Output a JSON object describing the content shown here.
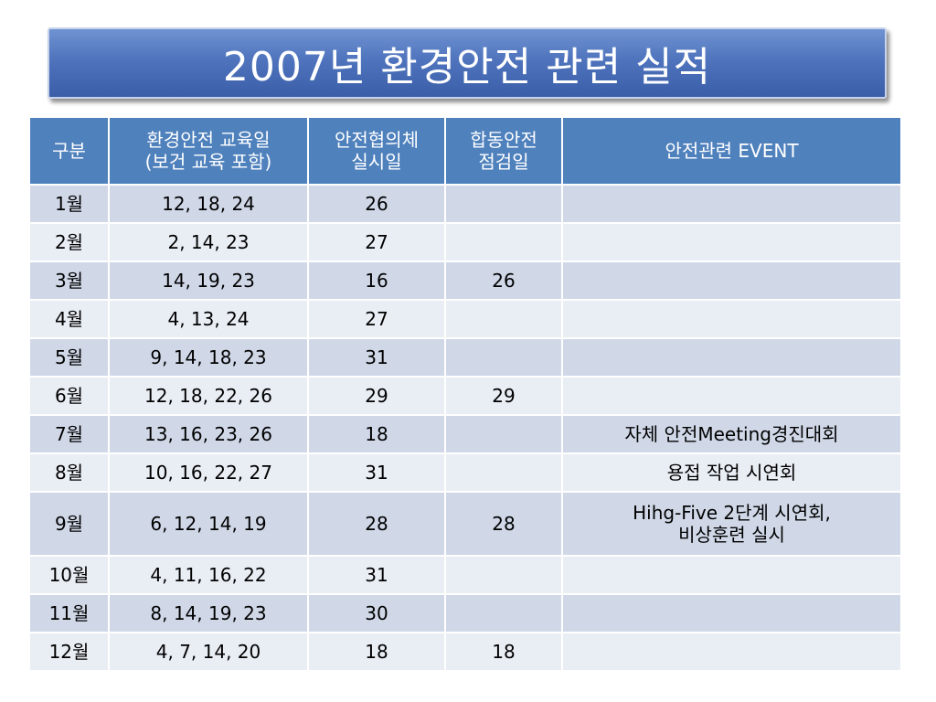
{
  "title": "2007년 환경안전 관련 실적",
  "colors": {
    "title_bg": "#4f74bd",
    "header_bg": "#4f81bd",
    "row_odd_bg": "#d0d8e8",
    "row_even_bg": "#e9edf4"
  },
  "table": {
    "headers": [
      "구분",
      "환경안전 교육일\n(보건 교육 포함)",
      "안전협의체\n실시일",
      "합동안전\n점검일",
      "안전관련 EVENT"
    ],
    "rows": [
      {
        "month": "1월",
        "education": "12, 18, 24",
        "council": "26",
        "inspection": "",
        "event": ""
      },
      {
        "month": "2월",
        "education": "2, 14, 23",
        "council": "27",
        "inspection": "",
        "event": ""
      },
      {
        "month": "3월",
        "education": "14, 19, 23",
        "council": "16",
        "inspection": "26",
        "event": ""
      },
      {
        "month": "4월",
        "education": "4, 13, 24",
        "council": "27",
        "inspection": "",
        "event": ""
      },
      {
        "month": "5월",
        "education": "9, 14, 18, 23",
        "council": "31",
        "inspection": "",
        "event": ""
      },
      {
        "month": "6월",
        "education": "12, 18, 22, 26",
        "council": "29",
        "inspection": "29",
        "event": ""
      },
      {
        "month": "7월",
        "education": "13, 16, 23, 26",
        "council": "18",
        "inspection": "",
        "event": "자체 안전Meeting경진대회"
      },
      {
        "month": "8월",
        "education": "10, 16, 22, 27",
        "council": "31",
        "inspection": "",
        "event": "용접 작업 시연회"
      },
      {
        "month": "9월",
        "education": "6, 12, 14, 19",
        "council": "28",
        "inspection": "28",
        "event": "Hihg-Five 2단계 시연회,\n비상훈련 실시"
      },
      {
        "month": "10월",
        "education": "4, 11, 16, 22",
        "council": "31",
        "inspection": "",
        "event": ""
      },
      {
        "month": "11월",
        "education": "8, 14, 19, 23",
        "council": "30",
        "inspection": "",
        "event": ""
      },
      {
        "month": "12월",
        "education": "4, 7, 14, 20",
        "council": "18",
        "inspection": "18",
        "event": ""
      }
    ]
  }
}
